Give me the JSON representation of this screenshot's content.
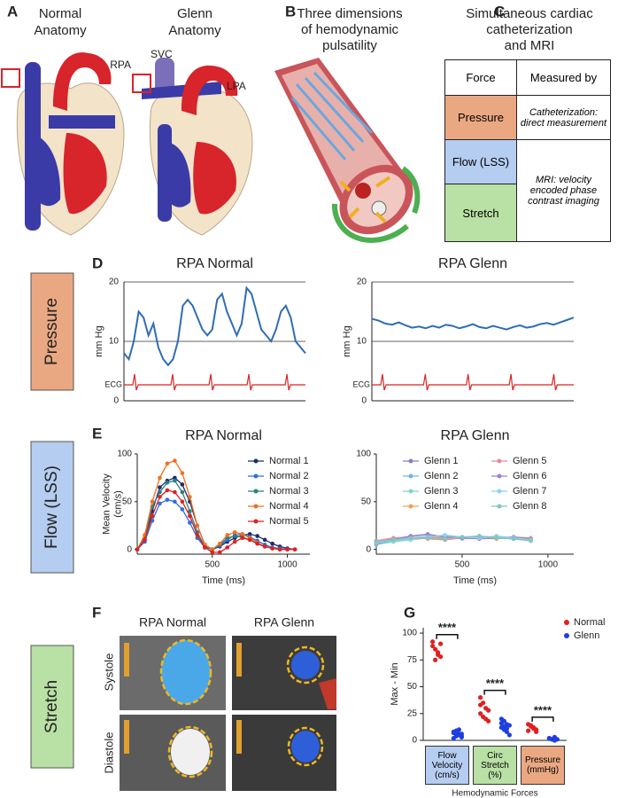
{
  "figure": {
    "panel_labels": [
      "A",
      "B",
      "C",
      "D",
      "E",
      "F",
      "G"
    ],
    "anatomy": {
      "normal": [
        "Normal",
        "Anatomy"
      ],
      "glenn": [
        "Glenn",
        "Anatomy"
      ],
      "rpa": "RPA",
      "svc": "SVC",
      "lpa": "LPA"
    },
    "pulsatility_title": [
      "Three dimensions",
      "of hemodynamic",
      "pulsatility"
    ],
    "table_title": [
      "Simultaneous cardiac",
      "catheterization",
      "and MRI"
    ],
    "table": {
      "header": [
        "Force",
        "Measured by"
      ],
      "forces": [
        "Pressure",
        "Flow (LSS)",
        "Stretch"
      ],
      "methods": [
        "Catheterization: direct measurement",
        "MRI: velocity encoded phase contrast imaging"
      ]
    },
    "stretch_images": {
      "columns": [
        "RPA Normal",
        "RPA Glenn"
      ],
      "rows": [
        "Systole",
        "Diastole"
      ]
    }
  },
  "chart_data": [
    {
      "type": "line",
      "title": "RPA Normal",
      "y_label": [
        "mm Hg"
      ],
      "annotation": "ECG",
      "ylim": [
        0,
        20
      ],
      "yticks": [
        0,
        10,
        20
      ],
      "grid": true,
      "series": [
        {
          "color": "#2f6db5",
          "values": [
            8,
            7,
            10,
            15,
            14,
            11,
            13,
            9,
            7,
            6,
            7,
            10,
            16,
            17,
            16,
            14,
            12,
            11,
            12,
            17,
            18,
            15,
            13,
            11,
            13,
            19,
            18,
            15,
            12,
            11,
            10,
            12,
            15,
            16,
            14,
            10,
            9,
            8
          ]
        }
      ]
    },
    {
      "type": "line",
      "title": "RPA Glenn",
      "y_label": [
        "mm Hg"
      ],
      "annotation": "ECG",
      "ylim": [
        0,
        20
      ],
      "yticks": [
        0,
        10,
        20
      ],
      "grid": true,
      "series": [
        {
          "color": "#2f6db5",
          "values": [
            13.8,
            13.5,
            13,
            12.8,
            13.2,
            12.7,
            12.3,
            12.5,
            12.2,
            12.6,
            12.3,
            12.8,
            12.6,
            12.2,
            12.5,
            12.9,
            12.4,
            12.2,
            12.6,
            12.3,
            12.0,
            12.4,
            12.7,
            12.3,
            12.5,
            12.9,
            13.1,
            12.8,
            13.2,
            13.6,
            14
          ]
        }
      ]
    },
    {
      "type": "line",
      "title": "RPA Normal",
      "x_label": "Time (ms)",
      "y_label": [
        "Mean Velocity",
        "(cm/s)"
      ],
      "markers": true,
      "x": [
        0,
        50,
        100,
        150,
        200,
        250,
        300,
        350,
        400,
        450,
        500,
        550,
        600,
        650,
        700,
        750,
        800,
        850,
        900,
        950,
        1000,
        1050
      ],
      "xlim": [
        0,
        1150
      ],
      "xticks": [
        500,
        1000
      ],
      "ylim": [
        -5,
        100
      ],
      "yticks": [
        0,
        50,
        100
      ],
      "series": [
        {
          "name": "Normal 1",
          "color": "#1f2a6b",
          "values": [
            0,
            10,
            40,
            65,
            72,
            75,
            68,
            50,
            25,
            5,
            0,
            3,
            8,
            12,
            15,
            16,
            14,
            10,
            6,
            3,
            1,
            0
          ]
        },
        {
          "name": "Normal 2",
          "color": "#2f6ee0",
          "values": [
            0,
            8,
            30,
            48,
            52,
            50,
            42,
            28,
            12,
            2,
            0,
            4,
            10,
            15,
            16,
            13,
            9,
            5,
            2,
            1,
            0,
            0
          ]
        },
        {
          "name": "Normal 3",
          "color": "#2a7f7f",
          "values": [
            0,
            12,
            45,
            60,
            70,
            72,
            60,
            40,
            18,
            3,
            0,
            5,
            12,
            14,
            13,
            10,
            6,
            3,
            1,
            0,
            0,
            0
          ]
        },
        {
          "name": "Normal 4",
          "color": "#f07020",
          "values": [
            0,
            15,
            50,
            75,
            90,
            93,
            80,
            55,
            25,
            5,
            0,
            6,
            15,
            18,
            16,
            12,
            7,
            3,
            1,
            0,
            0,
            0
          ]
        },
        {
          "name": "Normal 5",
          "color": "#e02020",
          "values": [
            0,
            10,
            35,
            55,
            62,
            60,
            50,
            35,
            15,
            2,
            -3,
            -3,
            2,
            8,
            12,
            10,
            6,
            3,
            1,
            0,
            0,
            0
          ]
        }
      ]
    },
    {
      "type": "line",
      "title": "RPA Glenn",
      "x_label": "Time (ms)",
      "markers": true,
      "x": [
        0,
        100,
        200,
        300,
        400,
        500,
        600,
        700,
        800,
        900
      ],
      "xlim": [
        0,
        1150
      ],
      "xticks": [
        500,
        1000
      ],
      "ylim": [
        -5,
        100
      ],
      "yticks": [
        0,
        50,
        100
      ],
      "series": [
        {
          "name": "Glenn 1",
          "color": "#8e7cc3",
          "values": [
            6,
            9,
            12,
            13,
            11,
            12,
            14,
            12,
            11,
            9
          ]
        },
        {
          "name": "Glenn 2",
          "color": "#6fb3e8",
          "values": [
            8,
            11,
            14,
            15,
            12,
            13,
            12,
            13,
            12,
            10
          ]
        },
        {
          "name": "Glenn 3",
          "color": "#7fd3c8",
          "values": [
            5,
            8,
            10,
            12,
            13,
            11,
            12,
            14,
            12,
            11
          ]
        },
        {
          "name": "Glenn 4",
          "color": "#f0a05a",
          "values": [
            7,
            10,
            11,
            12,
            14,
            13,
            12,
            11,
            13,
            12
          ]
        },
        {
          "name": "Glenn 5",
          "color": "#e88a9a",
          "values": [
            9,
            12,
            13,
            11,
            10,
            12,
            13,
            12,
            11,
            10
          ]
        },
        {
          "name": "Glenn 6",
          "color": "#9c7fd0",
          "values": [
            6,
            10,
            14,
            16,
            13,
            12,
            11,
            12,
            13,
            11
          ]
        },
        {
          "name": "Glenn 7",
          "color": "#8fd0f0",
          "values": [
            7,
            9,
            11,
            13,
            15,
            13,
            12,
            13,
            12,
            10
          ]
        },
        {
          "name": "Glenn 8",
          "color": "#7fc8c0",
          "values": [
            8,
            10,
            12,
            12,
            11,
            13,
            14,
            12,
            11,
            9
          ]
        }
      ]
    },
    {
      "type": "strip",
      "x_label": "Hemodynamic Forces",
      "y_label": [
        "Max - Min"
      ],
      "categories": [
        "Flow Velocity (cm/s)",
        "Circ Stretch (%)",
        "Pressure (mmHg)"
      ],
      "category_colors": [
        "#b5cdf0",
        "#b9e0a5",
        "#eaa882"
      ],
      "ylim": [
        0,
        105
      ],
      "yticks": [
        0,
        25,
        50,
        75,
        100
      ],
      "significance": [
        "****",
        "****",
        "****"
      ],
      "series": [
        {
          "name": "Normal",
          "color": "#e02020",
          "values": [
            [
              92,
              85,
              80,
              78,
              88,
              75,
              82,
              90
            ],
            [
              40,
              35,
              30,
              28,
              25,
              22,
              20,
              18,
              33
            ],
            [
              15,
              13,
              12,
              10,
              9,
              14,
              11,
              8
            ]
          ]
        },
        {
          "name": "Glenn",
          "color": "#1f3ee0",
          "values": [
            [
              2,
              4,
              5,
              6,
              8,
              9,
              10,
              3,
              7,
              5,
              6,
              4
            ],
            [
              20,
              18,
              15,
              14,
              12,
              10,
              8,
              5,
              16,
              13,
              11
            ],
            [
              2,
              1,
              3,
              1,
              2,
              1,
              0
            ]
          ]
        }
      ]
    }
  ]
}
